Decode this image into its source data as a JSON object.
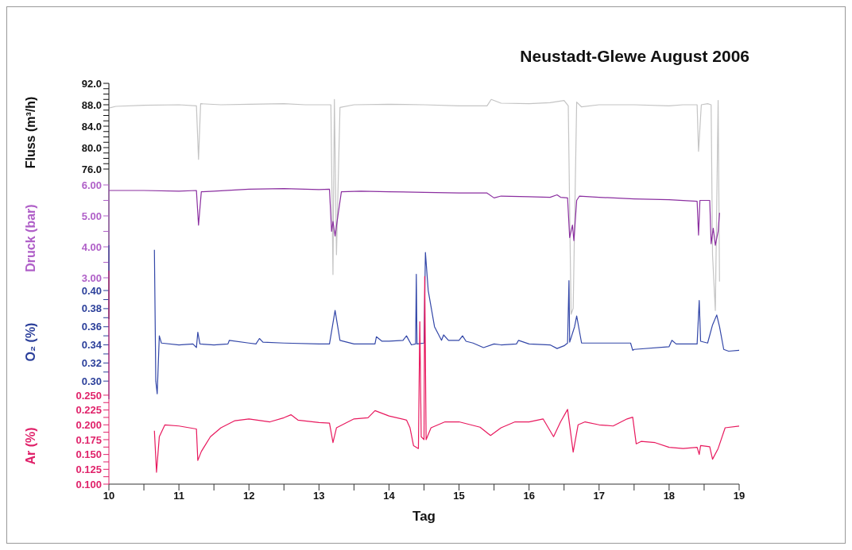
{
  "chart_data": [
    {
      "type": "line",
      "title": "Neustadt-Glewe August 2006",
      "ylabel": "Fluss (m³/h)",
      "xlim": [
        10,
        19
      ],
      "ylim": [
        48,
        92
      ],
      "tick_labels": "y",
      "marker": "none",
      "yticks": [
        {
          "value": 76,
          "label": "76.0"
        },
        {
          "value": 77,
          "label": null
        },
        {
          "value": 78,
          "label": null
        },
        {
          "value": 79,
          "label": null
        },
        {
          "value": 80,
          "label": "80.0"
        },
        {
          "value": 81,
          "label": null
        },
        {
          "value": 82,
          "label": null
        },
        {
          "value": 83,
          "label": null
        },
        {
          "value": 84,
          "label": "84.0"
        },
        {
          "value": 85,
          "label": null
        },
        {
          "value": 86,
          "label": null
        },
        {
          "value": 87,
          "label": null
        },
        {
          "value": 88,
          "label": "88.0"
        },
        {
          "value": 89,
          "label": null
        },
        {
          "value": 90,
          "label": null
        },
        {
          "value": 91,
          "label": null
        },
        {
          "value": 92,
          "label": "92.0"
        }
      ],
      "series": [
        {
          "color": "#c4c4c4",
          "x": [
            10.0,
            10.1,
            10.5,
            11.0,
            11.25,
            11.28,
            11.31,
            11.6,
            12.0,
            12.5,
            12.8,
            13.1,
            13.17,
            13.2,
            13.22,
            13.25,
            13.3,
            13.5,
            14.0,
            14.5,
            15.0,
            15.4,
            15.46,
            15.6,
            16.0,
            16.3,
            16.5,
            16.56,
            16.6,
            16.63,
            16.68,
            16.75,
            17.0,
            17.5,
            18.0,
            18.2,
            18.4,
            18.42,
            18.46,
            18.55,
            18.6,
            18.62,
            18.66,
            18.7,
            18.72
          ],
          "values": [
            87.4,
            87.7,
            87.9,
            88.0,
            87.8,
            77.8,
            88.2,
            88.0,
            88.1,
            88.2,
            88.0,
            88.0,
            88.0,
            56.3,
            89.0,
            60,
            87.5,
            88.0,
            88.1,
            88.0,
            87.8,
            87.8,
            89.0,
            88.3,
            88.2,
            88.4,
            88.8,
            87.8,
            48.9,
            50,
            88.5,
            87.6,
            88.0,
            88.0,
            87.8,
            88.0,
            88.0,
            79.3,
            88.0,
            88.2,
            88.0,
            60,
            49.6,
            88.8,
            55
          ]
        }
      ]
    },
    {
      "type": "line",
      "ylabel": "Druck (bar)",
      "xlim": [
        10,
        19
      ],
      "ylim": [
        3,
        6
      ],
      "tick_labels": "y",
      "marker": "none",
      "yticks": [
        {
          "value": 3,
          "label": "3.00"
        },
        {
          "value": 3.5,
          "label": null
        },
        {
          "value": 4,
          "label": "4.00"
        },
        {
          "value": 4.5,
          "label": null
        },
        {
          "value": 5,
          "label": "5.00"
        },
        {
          "value": 5.5,
          "label": null
        },
        {
          "value": 6,
          "label": "6.00"
        }
      ],
      "series": [
        {
          "color": "#8b2fa0",
          "x": [
            10.0,
            10.5,
            11.0,
            11.25,
            11.28,
            11.32,
            11.5,
            12.0,
            12.5,
            13.0,
            13.15,
            13.18,
            13.2,
            13.23,
            13.27,
            13.32,
            13.6,
            14.0,
            14.5,
            15.0,
            15.4,
            15.5,
            15.6,
            16.0,
            16.3,
            16.4,
            16.45,
            16.55,
            16.58,
            16.62,
            16.64,
            16.68,
            16.72,
            17.0,
            17.5,
            18.0,
            18.4,
            18.42,
            18.44,
            18.58,
            18.6,
            18.63,
            18.66,
            18.7,
            18.72
          ],
          "values": [
            5.82,
            5.82,
            5.8,
            5.82,
            4.7,
            5.78,
            5.8,
            5.86,
            5.88,
            5.85,
            5.86,
            4.5,
            4.82,
            4.35,
            5.0,
            5.78,
            5.8,
            5.78,
            5.76,
            5.74,
            5.74,
            5.58,
            5.64,
            5.62,
            5.6,
            5.68,
            5.6,
            5.58,
            4.3,
            4.7,
            4.2,
            5.5,
            5.64,
            5.6,
            5.55,
            5.52,
            5.47,
            4.38,
            5.5,
            5.5,
            4.1,
            4.6,
            4.05,
            4.5,
            5.1
          ]
        }
      ]
    },
    {
      "type": "line",
      "ylabel": "O₂ (%)",
      "xlim": [
        10,
        19
      ],
      "ylim": [
        0.28,
        0.45
      ],
      "tick_labels": "y",
      "marker": "none",
      "yticks": [
        {
          "value": 0.3,
          "label": "0.30"
        },
        {
          "value": 0.31,
          "label": null
        },
        {
          "value": 0.32,
          "label": "0.32"
        },
        {
          "value": 0.33,
          "label": null
        },
        {
          "value": 0.34,
          "label": "0.34"
        },
        {
          "value": 0.35,
          "label": null
        },
        {
          "value": 0.36,
          "label": "0.36"
        },
        {
          "value": 0.37,
          "label": null
        },
        {
          "value": 0.38,
          "label": "0.38"
        },
        {
          "value": 0.39,
          "label": null
        },
        {
          "value": 0.4,
          "label": "0.40"
        }
      ],
      "series": [
        {
          "color": "#3347a8",
          "x": [
            10.65,
            10.67,
            10.69,
            10.72,
            10.75,
            11.0,
            11.2,
            11.25,
            11.27,
            11.3,
            11.5,
            11.7,
            11.72,
            12.0,
            12.1,
            12.15,
            12.2,
            12.5,
            13.0,
            13.15,
            13.23,
            13.3,
            13.5,
            13.8,
            13.82,
            13.9,
            14.0,
            14.2,
            14.25,
            14.32,
            14.38,
            14.39,
            14.4,
            14.5,
            14.52,
            14.56,
            14.65,
            14.75,
            14.78,
            14.85,
            15.0,
            15.05,
            15.1,
            15.2,
            15.35,
            15.5,
            15.6,
            15.82,
            15.85,
            16.0,
            16.3,
            16.4,
            16.5,
            16.55,
            16.57,
            16.58,
            16.65,
            16.68,
            16.75,
            17.0,
            17.3,
            17.45,
            17.48,
            17.5,
            18.0,
            18.04,
            18.1,
            18.4,
            18.43,
            18.45,
            18.55,
            18.62,
            18.68,
            18.72,
            18.78,
            18.85,
            19.0
          ],
          "values": [
            0.445,
            0.3,
            0.286,
            0.35,
            0.342,
            0.34,
            0.341,
            0.337,
            0.354,
            0.341,
            0.34,
            0.341,
            0.345,
            0.342,
            0.341,
            0.347,
            0.343,
            0.342,
            0.341,
            0.341,
            0.378,
            0.345,
            0.341,
            0.341,
            0.349,
            0.344,
            0.344,
            0.345,
            0.35,
            0.34,
            0.341,
            0.418,
            0.341,
            0.342,
            0.442,
            0.4,
            0.36,
            0.345,
            0.351,
            0.345,
            0.345,
            0.35,
            0.344,
            0.342,
            0.337,
            0.341,
            0.34,
            0.341,
            0.345,
            0.341,
            0.34,
            0.336,
            0.339,
            0.342,
            0.411,
            0.343,
            0.36,
            0.372,
            0.342,
            0.342,
            0.342,
            0.342,
            0.334,
            0.335,
            0.338,
            0.345,
            0.341,
            0.341,
            0.389,
            0.344,
            0.342,
            0.362,
            0.373,
            0.36,
            0.335,
            0.333,
            0.334
          ]
        }
      ]
    },
    {
      "type": "line",
      "xlabel": "Tag",
      "ylabel": "Ar (%)",
      "xlim": [
        10,
        19
      ],
      "ylim": [
        0.1,
        0.46
      ],
      "marker": "none",
      "xticks": [
        10,
        {
          "value": 10.5,
          "label": null
        },
        11,
        {
          "value": 11.5,
          "label": null
        },
        12,
        {
          "value": 12.5,
          "label": null
        },
        13,
        {
          "value": 13.5,
          "label": null
        },
        14,
        {
          "value": 14.5,
          "label": null
        },
        15,
        {
          "value": 15.5,
          "label": null
        },
        16,
        {
          "value": 16.5,
          "label": null
        },
        17,
        {
          "value": 17.5,
          "label": null
        },
        18,
        {
          "value": 18.5,
          "label": null
        },
        19
      ],
      "yticks": [
        {
          "value": 0.1,
          "label": "0.100"
        },
        {
          "value": 0.1125,
          "label": null
        },
        {
          "value": 0.125,
          "label": "0.125"
        },
        {
          "value": 0.1375,
          "label": null
        },
        {
          "value": 0.15,
          "label": "0.150"
        },
        {
          "value": 0.1625,
          "label": null
        },
        {
          "value": 0.175,
          "label": "0.175"
        },
        {
          "value": 0.1875,
          "label": null
        },
        {
          "value": 0.2,
          "label": "0.200"
        },
        {
          "value": 0.2125,
          "label": null
        },
        {
          "value": 0.225,
          "label": "0.225"
        },
        {
          "value": 0.2375,
          "label": null
        },
        {
          "value": 0.25,
          "label": "0.250"
        }
      ],
      "series": [
        {
          "color": "#e8195e",
          "x": [
            10.65,
            10.68,
            10.72,
            10.8,
            11.0,
            11.25,
            11.27,
            11.32,
            11.45,
            11.6,
            11.8,
            12.0,
            12.3,
            12.5,
            12.6,
            12.7,
            13.0,
            13.15,
            13.2,
            13.25,
            13.5,
            13.7,
            13.8,
            14.0,
            14.25,
            14.3,
            14.35,
            14.42,
            14.44,
            14.46,
            14.5,
            14.51,
            14.53,
            14.6,
            14.8,
            15.0,
            15.3,
            15.45,
            15.6,
            15.8,
            16.0,
            16.2,
            16.35,
            16.45,
            16.55,
            16.63,
            16.7,
            16.8,
            17.0,
            17.2,
            17.4,
            17.48,
            17.53,
            17.6,
            17.8,
            18.0,
            18.2,
            18.4,
            18.43,
            18.45,
            18.58,
            18.62,
            18.7,
            18.8,
            19.0
          ],
          "values": [
            0.19,
            0.12,
            0.18,
            0.2,
            0.198,
            0.193,
            0.14,
            0.155,
            0.18,
            0.195,
            0.207,
            0.21,
            0.205,
            0.212,
            0.217,
            0.208,
            0.204,
            0.203,
            0.17,
            0.195,
            0.21,
            0.212,
            0.224,
            0.215,
            0.208,
            0.195,
            0.165,
            0.16,
            0.374,
            0.18,
            0.175,
            0.45,
            0.175,
            0.195,
            0.205,
            0.205,
            0.196,
            0.182,
            0.195,
            0.205,
            0.205,
            0.21,
            0.18,
            0.205,
            0.226,
            0.154,
            0.2,
            0.205,
            0.2,
            0.198,
            0.21,
            0.213,
            0.168,
            0.172,
            0.17,
            0.162,
            0.16,
            0.162,
            0.15,
            0.165,
            0.163,
            0.142,
            0.16,
            0.195,
            0.198
          ]
        }
      ]
    }
  ]
}
